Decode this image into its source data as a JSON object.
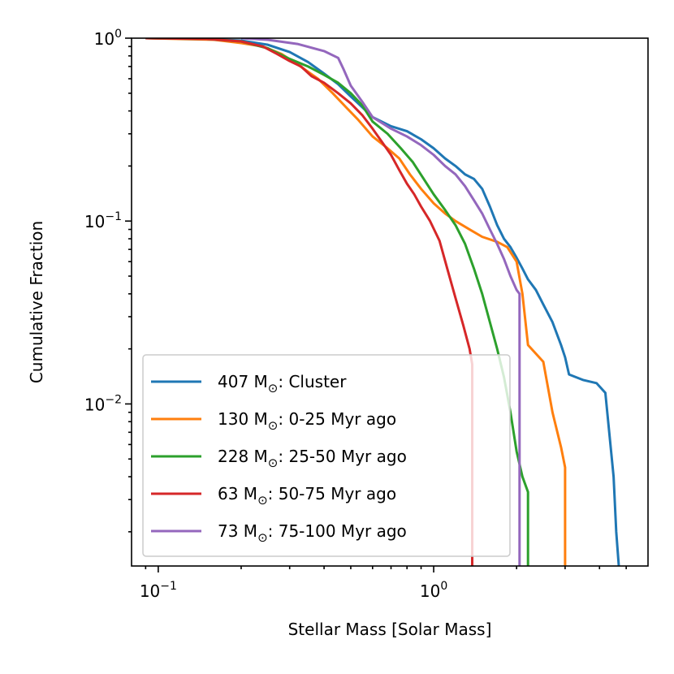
{
  "chart_data": {
    "type": "line",
    "xscale": "log",
    "yscale": "log",
    "xlim": [
      0.08,
      6.0
    ],
    "ylim": [
      0.0013,
      1.0
    ],
    "xlabel": "Stellar Mass [Solar Mass]",
    "ylabel": "Cumulative Fraction",
    "x_ticks": [
      {
        "value": 0.1,
        "base": "10",
        "exp": "−1"
      },
      {
        "value": 1.0,
        "base": "10",
        "exp": "0"
      }
    ],
    "y_ticks": [
      {
        "value": 0.01,
        "base": "10",
        "exp": "−2"
      },
      {
        "value": 0.1,
        "base": "10",
        "exp": "−1"
      },
      {
        "value": 1.0,
        "base": "10",
        "exp": "0"
      }
    ],
    "legend_position": "lower-left",
    "series": [
      {
        "name": "Cluster",
        "mass": "407",
        "unit": "M",
        "sub": "⊙",
        "label_rest": ": Cluster",
        "color": "#1f77b4",
        "x": [
          0.09,
          0.15,
          0.2,
          0.25,
          0.3,
          0.35,
          0.4,
          0.45,
          0.5,
          0.55,
          0.6,
          0.7,
          0.8,
          0.9,
          1.0,
          1.1,
          1.2,
          1.3,
          1.4,
          1.5,
          1.6,
          1.7,
          1.8,
          1.9,
          2.0,
          2.1,
          2.2,
          2.35,
          2.5,
          2.7,
          2.9,
          3.0,
          3.1,
          3.5,
          3.9,
          4.2,
          4.5,
          4.6,
          4.7
        ],
        "y": [
          1.0,
          0.99,
          0.97,
          0.92,
          0.84,
          0.74,
          0.64,
          0.56,
          0.48,
          0.42,
          0.37,
          0.33,
          0.31,
          0.28,
          0.25,
          0.22,
          0.2,
          0.18,
          0.17,
          0.15,
          0.12,
          0.095,
          0.08,
          0.072,
          0.063,
          0.055,
          0.048,
          0.042,
          0.035,
          0.028,
          0.021,
          0.018,
          0.0145,
          0.0135,
          0.013,
          0.0115,
          0.004,
          0.002,
          0.0013
        ]
      },
      {
        "name": "0-25 Myr ago",
        "mass": "130",
        "unit": "M",
        "sub": "⊙",
        "label_rest": ": 0-25 Myr ago",
        "color": "#ff7f0e",
        "x": [
          0.09,
          0.12,
          0.16,
          0.2,
          0.24,
          0.28,
          0.32,
          0.38,
          0.43,
          0.48,
          0.53,
          0.6,
          0.68,
          0.75,
          0.82,
          0.9,
          1.0,
          1.1,
          1.2,
          1.35,
          1.5,
          1.7,
          1.85,
          2.0,
          2.1,
          2.2,
          2.5,
          2.7,
          2.9,
          3.0,
          3.0
        ],
        "y": [
          1.0,
          0.99,
          0.98,
          0.94,
          0.9,
          0.82,
          0.72,
          0.6,
          0.5,
          0.42,
          0.36,
          0.29,
          0.25,
          0.22,
          0.18,
          0.15,
          0.125,
          0.11,
          0.1,
          0.09,
          0.082,
          0.077,
          0.072,
          0.06,
          0.04,
          0.021,
          0.017,
          0.009,
          0.0058,
          0.0045,
          0.0013
        ]
      },
      {
        "name": "25-50 Myr ago",
        "mass": "228",
        "unit": "M",
        "sub": "⊙",
        "label_rest": ": 25-50 Myr ago",
        "color": "#2ca02c",
        "x": [
          0.09,
          0.15,
          0.2,
          0.25,
          0.3,
          0.35,
          0.4,
          0.45,
          0.5,
          0.55,
          0.6,
          0.68,
          0.76,
          0.84,
          0.92,
          1.0,
          1.1,
          1.2,
          1.3,
          1.4,
          1.5,
          1.6,
          1.7,
          1.8,
          1.9,
          2.0,
          2.1,
          2.2,
          2.2
        ],
        "y": [
          1.0,
          0.99,
          0.96,
          0.88,
          0.77,
          0.7,
          0.63,
          0.57,
          0.5,
          0.43,
          0.35,
          0.3,
          0.25,
          0.21,
          0.17,
          0.14,
          0.115,
          0.095,
          0.075,
          0.055,
          0.04,
          0.028,
          0.02,
          0.014,
          0.009,
          0.0055,
          0.004,
          0.0033,
          0.0013
        ]
      },
      {
        "name": "50-75 Myr ago",
        "mass": "63",
        "unit": "M",
        "sub": "⊙",
        "label_rest": ": 50-75 Myr ago",
        "color": "#d62728",
        "x": [
          0.09,
          0.15,
          0.2,
          0.24,
          0.27,
          0.3,
          0.33,
          0.36,
          0.4,
          0.45,
          0.5,
          0.55,
          0.6,
          0.65,
          0.7,
          0.75,
          0.8,
          0.85,
          0.9,
          0.97,
          1.05,
          1.12,
          1.2,
          1.28,
          1.35,
          1.38,
          1.38
        ],
        "y": [
          1.0,
          0.99,
          0.96,
          0.9,
          0.82,
          0.75,
          0.7,
          0.62,
          0.57,
          0.5,
          0.44,
          0.38,
          0.32,
          0.27,
          0.23,
          0.19,
          0.16,
          0.14,
          0.12,
          0.1,
          0.078,
          0.055,
          0.038,
          0.027,
          0.02,
          0.0165,
          0.0013
        ]
      },
      {
        "name": "75-100 Myr ago",
        "mass": "73",
        "unit": "M",
        "sub": "⊙",
        "label_rest": ": 75-100 Myr ago",
        "color": "#9467bd",
        "x": [
          0.2,
          0.25,
          0.32,
          0.4,
          0.45,
          0.47,
          0.5,
          0.55,
          0.6,
          0.7,
          0.8,
          0.9,
          1.0,
          1.1,
          1.2,
          1.3,
          1.4,
          1.5,
          1.6,
          1.7,
          1.8,
          1.9,
          2.0,
          2.05,
          2.05
        ],
        "y": [
          1.0,
          0.98,
          0.93,
          0.85,
          0.78,
          0.68,
          0.55,
          0.45,
          0.37,
          0.32,
          0.29,
          0.26,
          0.23,
          0.2,
          0.18,
          0.155,
          0.13,
          0.11,
          0.09,
          0.075,
          0.062,
          0.05,
          0.042,
          0.04,
          0.0013
        ]
      }
    ]
  }
}
